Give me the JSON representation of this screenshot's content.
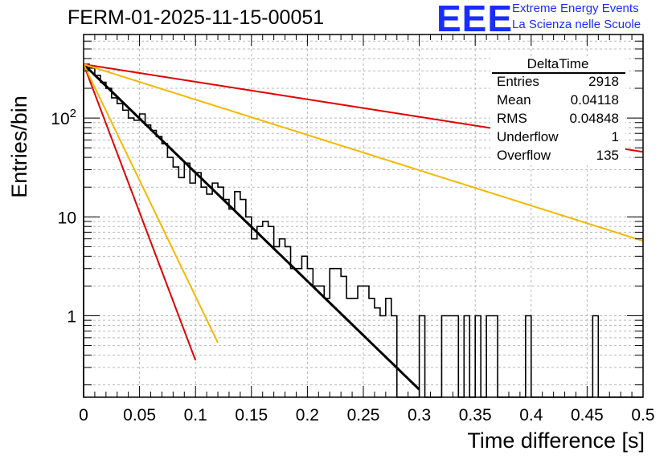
{
  "header": {
    "run_title": "FERM-01-2025-11-15-00051",
    "logo_text": "EEE",
    "logo_line1": "Extreme Energy Events",
    "logo_line2": "La Scienza nelle Scuole"
  },
  "stats_box": {
    "title": "DeltaTime",
    "rows": [
      {
        "key": "Entries",
        "value": "2918"
      },
      {
        "key": "Mean",
        "value": "0.04118"
      },
      {
        "key": "RMS",
        "value": "0.04848"
      },
      {
        "key": "Underflow",
        "value": "1"
      },
      {
        "key": "Overflow",
        "value": "135"
      }
    ]
  },
  "chart_data": {
    "type": "histogram",
    "title": "FERM-01-2025-11-15-00051",
    "xlabel": "Time difference [s]",
    "ylabel": "Entries/bin",
    "xlim": [
      0,
      0.5
    ],
    "ylim": [
      0.15,
      700
    ],
    "yscale": "log",
    "grid": true,
    "x_ticks": [
      0,
      0.05,
      0.1,
      0.15,
      0.2,
      0.25,
      0.3,
      0.35,
      0.4,
      0.45,
      0.5
    ],
    "x_tick_labels": [
      "0",
      "0.05",
      "0.1",
      "0.15",
      "0.2",
      "0.25",
      "0.3",
      "0.35",
      "0.4",
      "0.45",
      "0.5"
    ],
    "y_tick_values": [
      1,
      10,
      100
    ],
    "y_tick_labels": [
      "1",
      "10",
      "10^2"
    ],
    "bin_width": 0.005,
    "bin_start": 0,
    "counts": [
      350,
      320,
      270,
      230,
      200,
      160,
      140,
      120,
      100,
      95,
      110,
      85,
      75,
      65,
      55,
      40,
      32,
      25,
      35,
      22,
      28,
      20,
      17,
      22,
      20,
      15,
      12,
      18,
      15,
      10,
      6,
      8,
      9,
      8,
      5,
      6,
      5,
      3,
      3,
      4,
      3,
      2,
      2,
      1.5,
      3,
      3,
      2.5,
      1.5,
      1.5,
      2,
      2,
      1.5,
      1.2,
      1,
      1.5,
      1,
      0,
      0,
      0,
      0,
      1,
      0,
      0,
      0,
      1,
      1,
      1,
      0,
      1,
      0,
      1,
      0,
      1,
      1,
      0,
      0,
      0,
      0,
      0,
      1,
      0,
      0,
      0,
      0,
      0,
      0,
      0,
      0,
      0,
      0,
      0,
      1,
      0,
      0,
      0,
      0,
      0,
      0,
      0,
      0
    ],
    "series": [
      {
        "name": "fit",
        "kind": "exponential",
        "color": "#000000",
        "amplitude": 350,
        "tau": 0.0396,
        "x_range": [
          0,
          0.3
        ]
      },
      {
        "name": "rate-high-red",
        "kind": "exponential",
        "color": "#e00000",
        "amplitude": 350,
        "tau": 0.0145,
        "x_range": [
          0,
          0.1
        ]
      },
      {
        "name": "rate-high-yellow",
        "kind": "exponential",
        "color": "#f5b800",
        "amplitude": 350,
        "tau": 0.0185,
        "x_range": [
          0,
          0.12
        ]
      },
      {
        "name": "rate-low-red",
        "kind": "exponential",
        "color": "#e00000",
        "amplitude": 350,
        "tau": 0.245,
        "x_range": [
          0,
          0.5
        ]
      },
      {
        "name": "rate-low-yellow",
        "kind": "exponential",
        "color": "#f5b800",
        "amplitude": 350,
        "tau": 0.1215,
        "x_range": [
          0,
          0.5
        ]
      }
    ]
  }
}
